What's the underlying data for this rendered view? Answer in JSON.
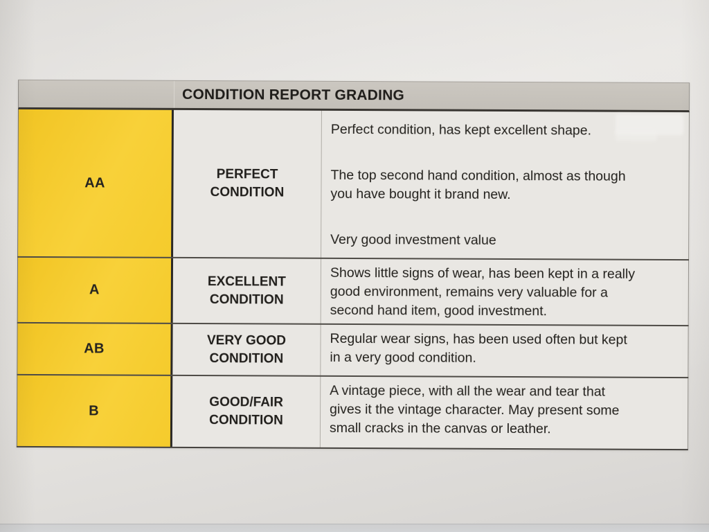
{
  "document": {
    "type": "printed-table-photo",
    "colors": {
      "grade_column_yellow": "#F6CE30",
      "header_band_gray": "#C7C3BC",
      "cell_background": "#E9E7E3",
      "paper_background": "#E3E1DE",
      "text": "#1F1D1A"
    },
    "table": {
      "header": {
        "title": "CONDITION REPORT GRADING"
      },
      "rows": [
        {
          "grade": "AA",
          "name": "PERFECT\nCONDITION",
          "paragraphs": [
            "Perfect condition, has kept excellent shape.",
            "The top second hand condition, almost as though\nyou have bought it brand new.",
            "Very good investment value"
          ]
        },
        {
          "grade": "A",
          "name": "EXCELLENT\nCONDITION",
          "paragraphs": [
            "Shows little signs of wear, has been kept in a really\ngood environment, remains very valuable for a\nsecond hand item, good investment."
          ]
        },
        {
          "grade": "AB",
          "name": "VERY GOOD\nCONDITION",
          "paragraphs": [
            "Regular wear signs, has been used often but kept\nin a very good condition."
          ]
        },
        {
          "grade": "B",
          "name": "GOOD/FAIR\nCONDITION",
          "paragraphs": [
            "A vintage piece, with all the wear and tear that\ngives it the vintage character. May present some\nsmall cracks in the canvas or leather."
          ]
        }
      ]
    }
  }
}
